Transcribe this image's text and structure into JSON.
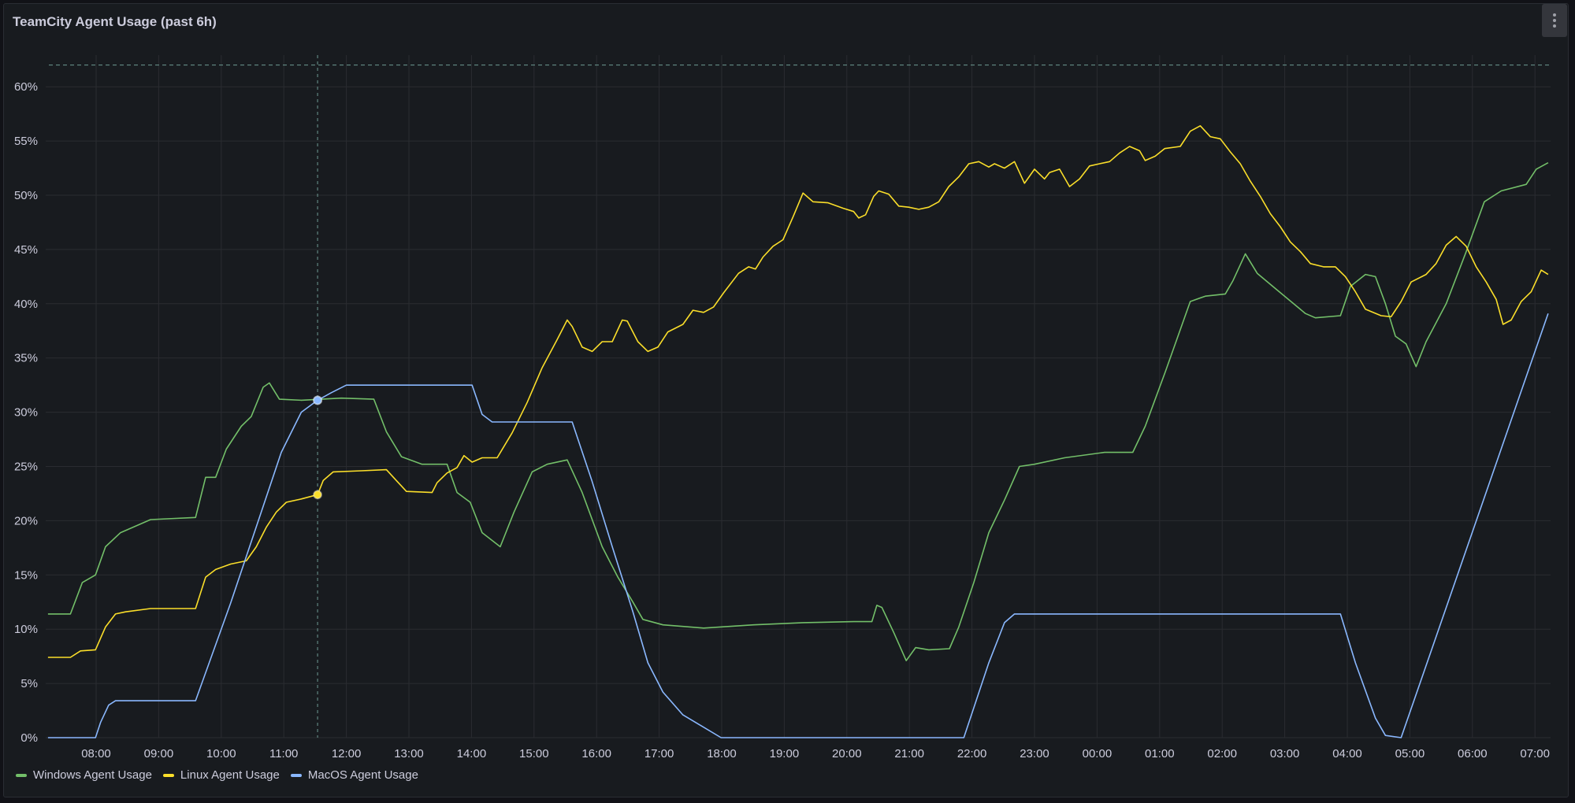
{
  "panel": {
    "title": "TeamCity Agent Usage (past 6h)",
    "menu_icon": "vertical-ellipsis-icon"
  },
  "chart_data": {
    "type": "line",
    "title": "TeamCity Agent Usage (past 6h)",
    "xlabel": "",
    "ylabel": "",
    "x_unit": "hours since 00:00 of first day (values above 24 are next day)",
    "xlim": [
      7.23,
      31.22
    ],
    "ylim": [
      0,
      60
    ],
    "grid": true,
    "legend_position": "bottom-left",
    "x_ticks": [
      8,
      9,
      10,
      11,
      12,
      13,
      14,
      15,
      16,
      17,
      18,
      19,
      20,
      21,
      22,
      23,
      24,
      25,
      26,
      27,
      28,
      29,
      30,
      31
    ],
    "x_tick_labels": [
      "08:00",
      "09:00",
      "10:00",
      "11:00",
      "12:00",
      "13:00",
      "14:00",
      "15:00",
      "16:00",
      "17:00",
      "18:00",
      "19:00",
      "20:00",
      "21:00",
      "22:00",
      "23:00",
      "00:00",
      "01:00",
      "02:00",
      "03:00",
      "04:00",
      "05:00",
      "06:00",
      "07:00"
    ],
    "y_ticks": [
      0,
      5,
      10,
      15,
      20,
      25,
      30,
      35,
      40,
      45,
      50,
      55,
      60
    ],
    "y_tick_labels": [
      "0%",
      "5%",
      "10%",
      "15%",
      "20%",
      "25%",
      "30%",
      "35%",
      "40%",
      "45%",
      "50%",
      "55%",
      "60%"
    ],
    "threshold": 62,
    "crosshair": {
      "x": 11.54,
      "points": [
        {
          "series": 0,
          "y": 31.1
        },
        {
          "series": 1,
          "y": 22.4
        },
        {
          "series": 2,
          "y": 31.1
        }
      ]
    },
    "series": [
      {
        "name": "Windows Agent Usage",
        "color": "#73bf69",
        "x": [
          7.23,
          7.59,
          7.78,
          7.99,
          8.15,
          8.39,
          8.87,
          9.59,
          9.75,
          9.91,
          10.08,
          10.32,
          10.48,
          10.67,
          10.77,
          10.93,
          11.28,
          11.92,
          12.44,
          12.64,
          12.88,
          13.21,
          13.61,
          13.77,
          13.98,
          14.17,
          14.46,
          14.68,
          14.97,
          15.21,
          15.53,
          15.77,
          16.09,
          16.34,
          16.58,
          16.74,
          17.06,
          17.71,
          18.51,
          19.31,
          20.11,
          20.4,
          20.48,
          20.56,
          20.75,
          20.95,
          21.1,
          21.31,
          21.64,
          21.79,
          22.03,
          22.27,
          22.52,
          22.76,
          23.0,
          23.48,
          24.12,
          24.57,
          24.77,
          25.09,
          25.49,
          25.73,
          26.05,
          26.17,
          26.37,
          26.56,
          26.85,
          27.33,
          27.49,
          27.89,
          28.05,
          28.29,
          28.45,
          28.61,
          28.77,
          28.94,
          29.1,
          29.26,
          29.58,
          29.9,
          30.19,
          30.46,
          30.86,
          31.02,
          31.21
        ],
        "values": [
          11.4,
          11.4,
          14.3,
          15.0,
          17.6,
          18.9,
          20.1,
          20.3,
          24.0,
          24.0,
          26.6,
          28.7,
          29.6,
          32.3,
          32.7,
          31.2,
          31.1,
          31.3,
          31.2,
          28.2,
          25.9,
          25.2,
          25.2,
          22.6,
          21.7,
          18.9,
          17.6,
          20.8,
          24.5,
          25.2,
          25.6,
          22.6,
          17.6,
          14.8,
          12.5,
          10.9,
          10.4,
          10.1,
          10.4,
          10.6,
          10.7,
          10.7,
          12.2,
          12.0,
          9.7,
          7.1,
          8.3,
          8.1,
          8.2,
          10.2,
          14.3,
          18.9,
          21.9,
          25.0,
          25.2,
          25.8,
          26.3,
          26.3,
          28.7,
          33.7,
          40.2,
          40.7,
          40.9,
          42.1,
          44.6,
          42.8,
          41.4,
          39.1,
          38.7,
          38.9,
          41.6,
          42.7,
          42.5,
          40.0,
          37.0,
          36.3,
          34.2,
          36.5,
          40.0,
          44.8,
          49.4,
          50.4,
          51.0,
          52.4,
          53.0
        ]
      },
      {
        "name": "Linux Agent Usage",
        "color": "#fade2a",
        "x": [
          7.23,
          7.59,
          7.75,
          7.99,
          8.15,
          8.31,
          8.47,
          8.87,
          9.59,
          9.75,
          9.91,
          10.15,
          10.4,
          10.56,
          10.72,
          10.88,
          11.04,
          11.28,
          11.54,
          11.63,
          11.79,
          12.24,
          12.64,
          12.8,
          12.96,
          13.37,
          13.45,
          13.61,
          13.77,
          13.88,
          14.01,
          14.17,
          14.41,
          14.65,
          14.89,
          15.13,
          15.37,
          15.53,
          15.61,
          15.77,
          15.93,
          16.09,
          16.25,
          16.41,
          16.49,
          16.66,
          16.82,
          16.98,
          17.14,
          17.38,
          17.54,
          17.71,
          17.87,
          18.03,
          18.27,
          18.43,
          18.54,
          18.66,
          18.82,
          18.98,
          19.14,
          19.3,
          19.46,
          19.7,
          19.94,
          20.11,
          20.19,
          20.3,
          20.43,
          20.51,
          20.67,
          20.83,
          20.99,
          21.15,
          21.31,
          21.47,
          21.63,
          21.79,
          21.95,
          22.11,
          22.27,
          22.36,
          22.52,
          22.68,
          22.84,
          23.0,
          23.16,
          23.24,
          23.4,
          23.56,
          23.72,
          23.88,
          24.04,
          24.2,
          24.36,
          24.52,
          24.68,
          24.77,
          24.93,
          25.08,
          25.33,
          25.49,
          25.65,
          25.81,
          25.97,
          26.13,
          26.29,
          26.45,
          26.61,
          26.77,
          26.93,
          27.09,
          27.25,
          27.41,
          27.62,
          27.81,
          27.97,
          28.13,
          28.29,
          28.54,
          28.7,
          28.86,
          29.02,
          29.26,
          29.42,
          29.58,
          29.74,
          29.9,
          30.06,
          30.22,
          30.38,
          30.49,
          30.62,
          30.78,
          30.94,
          31.1,
          31.21
        ],
        "values": [
          7.4,
          7.4,
          8.0,
          8.1,
          10.2,
          11.4,
          11.6,
          11.9,
          11.9,
          14.8,
          15.5,
          16.0,
          16.3,
          17.6,
          19.4,
          20.8,
          21.7,
          22.0,
          22.4,
          23.7,
          24.5,
          24.6,
          24.7,
          23.7,
          22.7,
          22.6,
          23.5,
          24.4,
          24.9,
          26.0,
          25.4,
          25.8,
          25.8,
          28.1,
          30.9,
          34.1,
          36.7,
          38.5,
          37.9,
          36.0,
          35.6,
          36.5,
          36.5,
          38.5,
          38.4,
          36.5,
          35.6,
          36.0,
          37.4,
          38.1,
          39.4,
          39.2,
          39.7,
          41.0,
          42.8,
          43.4,
          43.2,
          44.3,
          45.3,
          45.9,
          48.0,
          50.2,
          49.4,
          49.3,
          48.8,
          48.5,
          47.9,
          48.2,
          49.9,
          50.4,
          50.1,
          49.0,
          48.9,
          48.7,
          48.9,
          49.4,
          50.8,
          51.7,
          52.9,
          53.1,
          52.6,
          52.9,
          52.5,
          53.1,
          51.1,
          52.4,
          51.5,
          52.1,
          52.4,
          50.8,
          51.5,
          52.7,
          52.9,
          53.1,
          53.9,
          54.5,
          54.1,
          53.2,
          53.6,
          54.3,
          54.5,
          55.9,
          56.4,
          55.4,
          55.2,
          54.0,
          52.9,
          51.3,
          49.9,
          48.3,
          47.1,
          45.7,
          44.8,
          43.7,
          43.4,
          43.4,
          42.5,
          41.1,
          39.5,
          38.9,
          38.8,
          40.2,
          42.0,
          42.7,
          43.7,
          45.4,
          46.2,
          45.3,
          43.4,
          42.0,
          40.4,
          38.1,
          38.5,
          40.2,
          41.1,
          43.1,
          42.7
        ]
      },
      {
        "name": "MacOS Agent Usage",
        "color": "#8ab8ff",
        "x": [
          7.23,
          7.99,
          8.07,
          8.2,
          8.31,
          9.59,
          10.15,
          10.64,
          10.96,
          11.28,
          11.54,
          11.76,
          12.0,
          14.01,
          14.17,
          14.33,
          15.61,
          15.93,
          16.25,
          16.58,
          16.82,
          17.06,
          17.38,
          17.99,
          21.87,
          22.27,
          22.52,
          22.68,
          27.89,
          28.13,
          28.45,
          28.61,
          28.86,
          31.21
        ],
        "values": [
          0,
          0,
          1.4,
          3.0,
          3.4,
          3.4,
          12.4,
          20.8,
          26.3,
          30.0,
          31.1,
          31.8,
          32.5,
          32.5,
          29.8,
          29.1,
          29.1,
          23.6,
          17.6,
          11.6,
          6.9,
          4.2,
          2.1,
          0,
          0,
          6.9,
          10.6,
          11.4,
          11.4,
          6.9,
          1.8,
          0.2,
          0,
          39.1
        ]
      }
    ]
  }
}
